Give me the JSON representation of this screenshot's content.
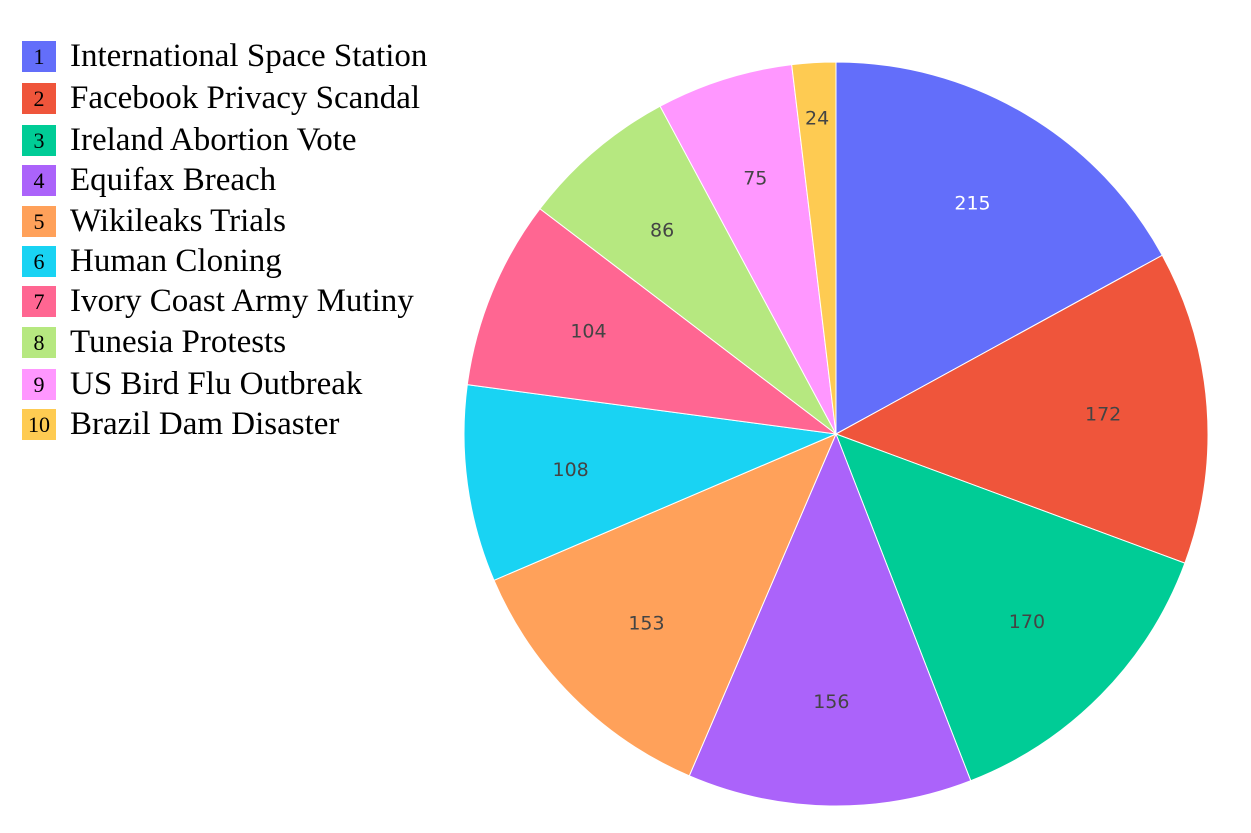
{
  "chart_data": {
    "type": "pie",
    "direction": "clockwise",
    "start": "12 o'clock",
    "legend_position": "top-left",
    "slices": [
      {
        "number": "1",
        "label": "International Space Station",
        "value": 215,
        "color": "#636EFA",
        "text_color": "#FFFFFF"
      },
      {
        "number": "2",
        "label": "Facebook Privacy Scandal",
        "value": 172,
        "color": "#EF553B",
        "text_color": "#444444"
      },
      {
        "number": "3",
        "label": "Ireland Abortion Vote",
        "value": 170,
        "color": "#00CC96",
        "text_color": "#444444"
      },
      {
        "number": "4",
        "label": "Equifax Breach",
        "value": 156,
        "color": "#AB63FA",
        "text_color": "#444444"
      },
      {
        "number": "5",
        "label": "Wikileaks Trials",
        "value": 153,
        "color": "#FFA15A",
        "text_color": "#444444"
      },
      {
        "number": "6",
        "label": "Human Cloning",
        "value": 108,
        "color": "#19D3F3",
        "text_color": "#444444"
      },
      {
        "number": "7",
        "label": "Ivory Coast Army Mutiny",
        "value": 104,
        "color": "#FF6692",
        "text_color": "#444444"
      },
      {
        "number": "8",
        "label": "Tunesia Protests",
        "value": 86,
        "color": "#B6E880",
        "text_color": "#444444"
      },
      {
        "number": "9",
        "label": "US Bird Flu Outbreak",
        "value": 75,
        "color": "#FF97FF",
        "text_color": "#444444"
      },
      {
        "number": "10",
        "label": "Brazil Dam Disaster",
        "value": 24,
        "color": "#FECB52",
        "text_color": "#444444"
      }
    ]
  }
}
